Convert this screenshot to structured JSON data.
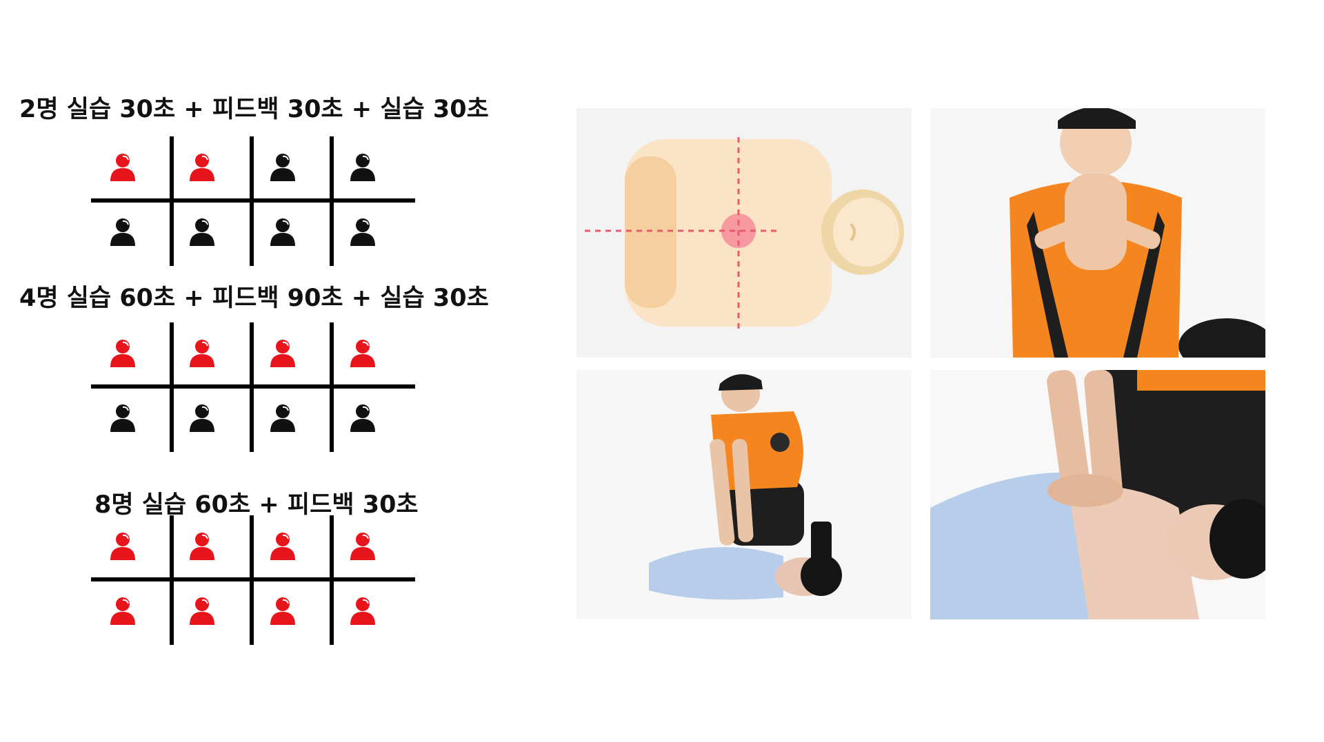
{
  "sections": [
    {
      "caption": "2명 실습 30초 + 피드백 30초 + 실습 30초",
      "active_count": 2
    },
    {
      "caption": "4명 실습 60초 + 피드백 90초 + 실습 30초",
      "active_count": 4
    },
    {
      "caption": "8명 실습 60초 + 피드백 30초",
      "active_count": 8
    }
  ],
  "colors": {
    "active": "#e8141b",
    "inactive": "#111111",
    "grid": "#000000"
  },
  "icons": {
    "person": "person-icon"
  },
  "panels": [
    {
      "name": "chest-compression-point-diagram"
    },
    {
      "name": "rescuer-interlocked-hands-photo"
    },
    {
      "name": "rescuer-kneeling-compression-photo"
    },
    {
      "name": "compression-closeup-photo"
    }
  ]
}
